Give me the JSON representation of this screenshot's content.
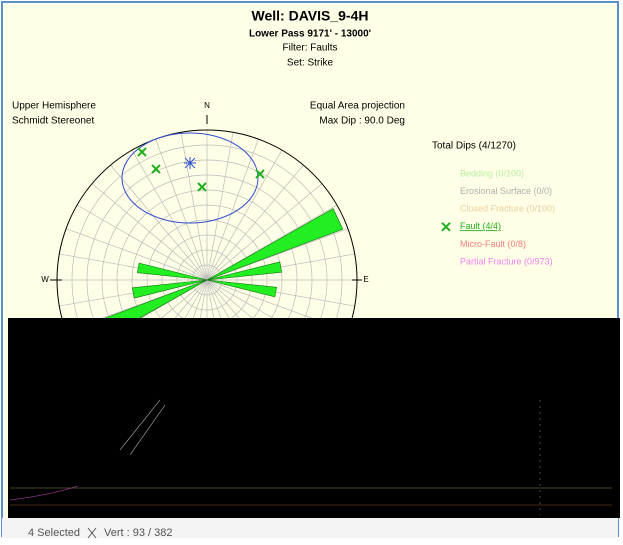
{
  "header": {
    "title": "Well: DAVIS_9-4H",
    "interval": "Lower Pass 9171' - 13000'",
    "filter": "Filter: Faults",
    "set": "Set: Strike"
  },
  "stereonet": {
    "hemisphere": "Upper Hemisphere",
    "net": "Schmidt Stereonet",
    "projection": "Equal Area projection",
    "max_dip": "Max Dip : 90.0 Deg",
    "north": "N",
    "west": "W",
    "east": "E"
  },
  "legend": {
    "title": "Total Dips (4/1270)",
    "items": [
      {
        "label": "Bedding (0/100)",
        "color": "#b8f0a0"
      },
      {
        "label": "Erosional Surface (0/0)",
        "color": "#b0b0b0"
      },
      {
        "label": "Closed Fracture (0/100)",
        "color": "#e8d0a0"
      },
      {
        "label": "Fault (4/4)",
        "color": "#22b022",
        "selected": true
      },
      {
        "label": "Micro-Fault (0/8)",
        "color": "#f08080"
      },
      {
        "label": "Partial Fracture (0/973)",
        "color": "#f080f0"
      }
    ]
  },
  "status": {
    "selected": "4 Selected",
    "vert": "Vert : 93 / 382"
  }
}
